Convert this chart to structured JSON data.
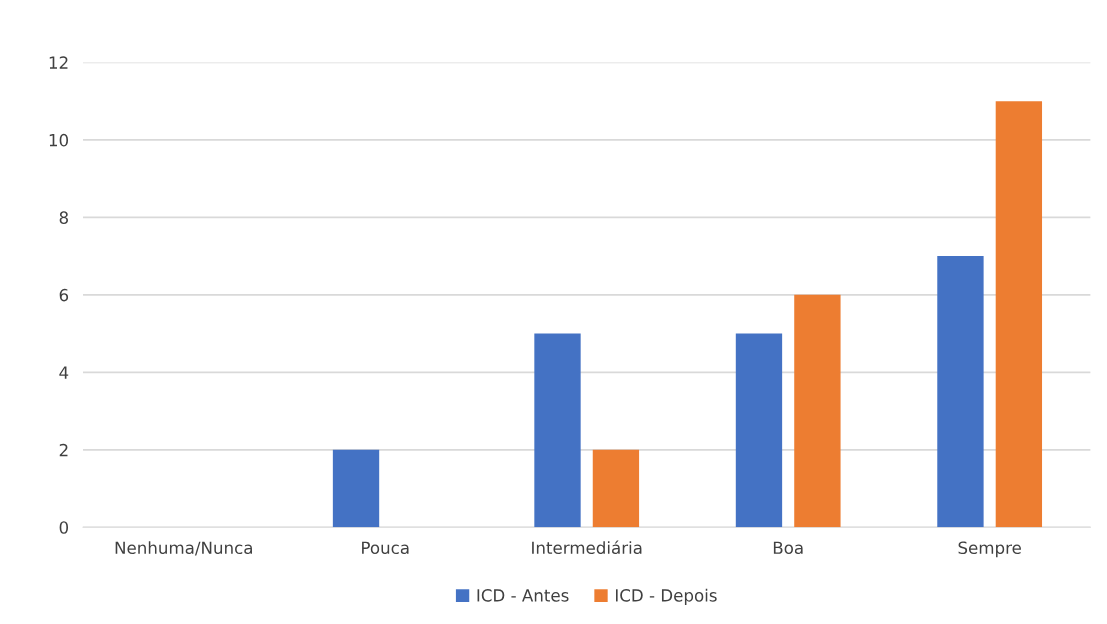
{
  "chart_data": {
    "type": "bar",
    "categories": [
      "Nenhuma/Nunca",
      "Pouca",
      "Intermediária",
      "Boa",
      "Sempre"
    ],
    "series": [
      {
        "name": "ICD - Antes",
        "color": "#4472c4",
        "values": [
          0,
          2,
          5,
          5,
          7
        ]
      },
      {
        "name": "ICD - Depois",
        "color": "#ed7d31",
        "values": [
          0,
          0,
          2,
          6,
          11
        ]
      }
    ],
    "ylim": [
      0,
      12
    ],
    "yticks": [
      0,
      2,
      4,
      6,
      8,
      10,
      12
    ],
    "grid": "y",
    "legend": "bottom"
  }
}
